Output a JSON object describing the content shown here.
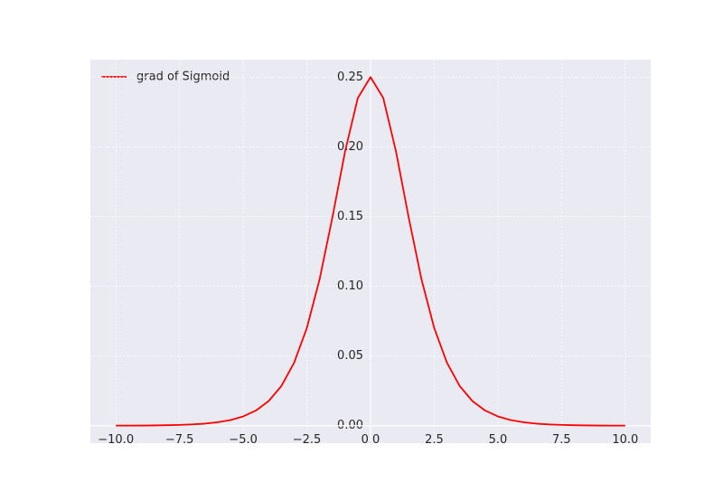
{
  "chart_data": {
    "type": "line",
    "x": [
      -10,
      -9.5,
      -9,
      -8.5,
      -8,
      -7.5,
      -7,
      -6.5,
      -6,
      -5.5,
      -5,
      -4.5,
      -4,
      -3.5,
      -3,
      -2.5,
      -2,
      -1.5,
      -1,
      -0.5,
      0,
      0.5,
      1,
      1.5,
      2,
      2.5,
      3,
      3.5,
      4,
      4.5,
      5,
      5.5,
      6,
      6.5,
      7,
      7.5,
      8,
      8.5,
      9,
      9.5,
      10
    ],
    "series": [
      {
        "name": "grad of Sigmoid",
        "color": "#ff0000",
        "values": [
          5e-05,
          7e-05,
          0.00012,
          0.0002,
          0.00034,
          0.00055,
          0.00091,
          0.0015,
          0.00247,
          0.00405,
          0.00665,
          0.01087,
          0.01766,
          0.02845,
          0.04518,
          0.0701,
          0.10499,
          0.14915,
          0.19661,
          0.235,
          0.25,
          0.235,
          0.19661,
          0.14915,
          0.10499,
          0.0701,
          0.04518,
          0.02845,
          0.01766,
          0.01087,
          0.00665,
          0.00405,
          0.00247,
          0.0015,
          0.00091,
          0.00055,
          0.00034,
          0.0002,
          0.00012,
          7e-05,
          5e-05
        ]
      }
    ],
    "xlim": [
      -11,
      11
    ],
    "ylim": [
      -0.0125,
      0.2625
    ],
    "xticks": [
      {
        "value": -10,
        "label": "−10.0"
      },
      {
        "value": -7.5,
        "label": "−7.5"
      },
      {
        "value": -5,
        "label": "−5.0"
      },
      {
        "value": -2.5,
        "label": "−2.5"
      },
      {
        "value": 0,
        "label": "0.0"
      },
      2.5,
      {
        "value": 5,
        "label": "5.0"
      },
      7.5,
      {
        "value": 10,
        "label": "10.0"
      }
    ],
    "yticks": [
      {
        "value": 0,
        "label": "0.00"
      },
      0.05,
      {
        "value": 0.1,
        "label": "0.10"
      },
      0.15,
      {
        "value": 0.2,
        "label": "0.20"
      },
      0.25
    ],
    "grid": true,
    "legend": "upper left"
  }
}
